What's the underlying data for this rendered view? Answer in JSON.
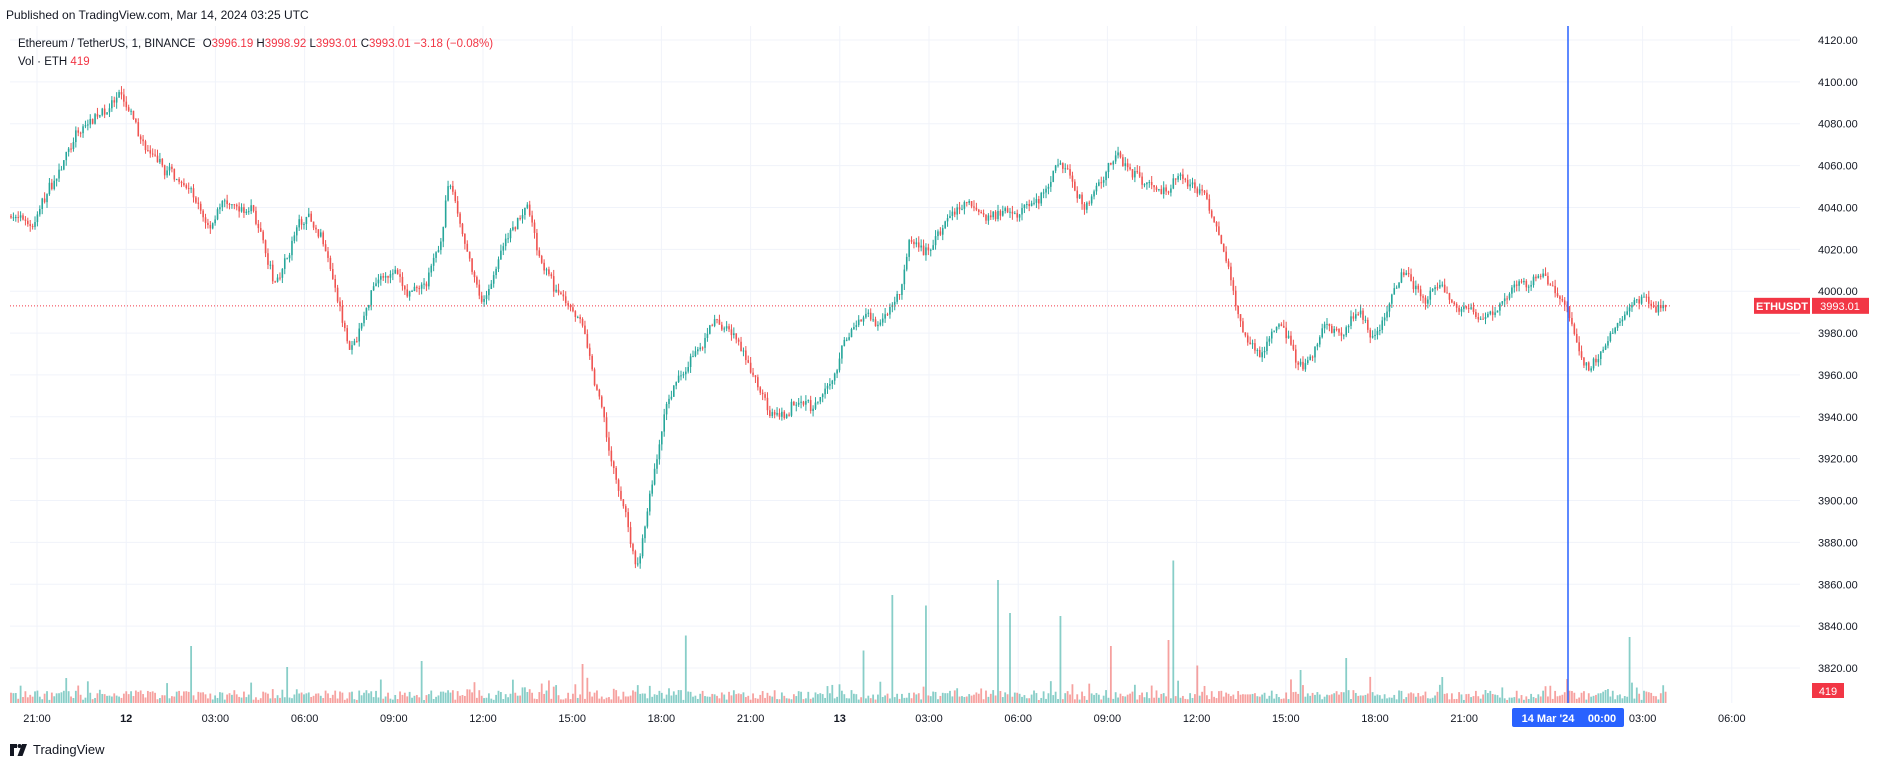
{
  "published": "Published on TradingView.com, Mar 14, 2024 03:25 UTC",
  "brand": "TradingView",
  "legend": {
    "symbol": "Ethereum / TetherUS, 1, BINANCE",
    "o_label": "O",
    "o_value": "3996.19",
    "h_label": "H",
    "h_value": "3998.92",
    "l_label": "L",
    "l_value": "3993.01",
    "c_label": "C",
    "c_value": "3993.01",
    "change": "−3.18 (−0.08%)",
    "vol_label": "Vol · ETH",
    "vol_value": "419"
  },
  "colors": {
    "up": "#26a69a",
    "down": "#ef5350",
    "crosshair": "#2962ff",
    "price_tag": "#f23645"
  },
  "chart_data": {
    "type": "candlestick",
    "symbol": "ETHUSDT",
    "interval": "1",
    "ylim": [
      3810,
      4125
    ],
    "y_ticks": [
      "4120.00",
      "4100.00",
      "4080.00",
      "4060.00",
      "4040.00",
      "4020.00",
      "4000.00",
      "3980.00",
      "3960.00",
      "3940.00",
      "3920.00",
      "3900.00",
      "3880.00",
      "3860.00",
      "3840.00",
      "3820.00"
    ],
    "x_ticks": [
      "21:00",
      "12",
      "03:00",
      "06:00",
      "09:00",
      "12:00",
      "15:00",
      "18:00",
      "21:00",
      "13",
      "03:00",
      "06:00",
      "09:00",
      "12:00",
      "15:00",
      "18:00",
      "21:00",
      "03:00",
      "06:00"
    ],
    "bold_x_ticks": [
      "12",
      "13"
    ],
    "last_price": "3993.01",
    "last_price_label": "ETHUSDT",
    "last_volume": "419",
    "crosshair_date": "14 Mar '24",
    "crosshair_time": "00:00",
    "price_path": [
      [
        0,
        4036
      ],
      [
        5,
        4033
      ],
      [
        10,
        4032
      ],
      [
        15,
        4045
      ],
      [
        20,
        4055
      ],
      [
        25,
        4065
      ],
      [
        30,
        4075
      ],
      [
        35,
        4082
      ],
      [
        40,
        4085
      ],
      [
        45,
        4088
      ],
      [
        50,
        4092
      ],
      [
        55,
        4082
      ],
      [
        60,
        4070
      ],
      [
        65,
        4062
      ],
      [
        70,
        4058
      ],
      [
        75,
        4055
      ],
      [
        80,
        4050
      ],
      [
        85,
        4040
      ],
      [
        90,
        4030
      ],
      [
        95,
        4042
      ],
      [
        100,
        4040
      ],
      [
        105,
        4038
      ],
      [
        110,
        4040
      ],
      [
        115,
        4020
      ],
      [
        120,
        4002
      ],
      [
        125,
        4015
      ],
      [
        130,
        4030
      ],
      [
        135,
        4035
      ],
      [
        140,
        4028
      ],
      [
        145,
        4015
      ],
      [
        150,
        3990
      ],
      [
        155,
        3970
      ],
      [
        160,
        3985
      ],
      [
        165,
        4005
      ],
      [
        170,
        4010
      ],
      [
        175,
        4008
      ],
      [
        180,
        3998
      ],
      [
        185,
        4000
      ],
      [
        190,
        4005
      ],
      [
        195,
        4022
      ],
      [
        200,
        4055
      ],
      [
        205,
        4030
      ],
      [
        210,
        4010
      ],
      [
        215,
        3990
      ],
      [
        220,
        4010
      ],
      [
        225,
        4025
      ],
      [
        230,
        4032
      ],
      [
        235,
        4045
      ],
      [
        240,
        4020
      ],
      [
        245,
        4005
      ],
      [
        250,
        3998
      ],
      [
        255,
        3995
      ],
      [
        260,
        3985
      ],
      [
        265,
        3960
      ],
      [
        270,
        3940
      ],
      [
        275,
        3910
      ],
      [
        280,
        3895
      ],
      [
        285,
        3865
      ],
      [
        290,
        3895
      ],
      [
        295,
        3925
      ],
      [
        300,
        3950
      ],
      [
        305,
        3960
      ],
      [
        310,
        3968
      ],
      [
        315,
        3975
      ],
      [
        320,
        3985
      ],
      [
        325,
        3982
      ],
      [
        330,
        3978
      ],
      [
        335,
        3965
      ],
      [
        340,
        3955
      ],
      [
        345,
        3945
      ],
      [
        350,
        3938
      ],
      [
        355,
        3945
      ],
      [
        360,
        3950
      ],
      [
        365,
        3945
      ],
      [
        370,
        3950
      ],
      [
        375,
        3960
      ],
      [
        380,
        3975
      ],
      [
        385,
        3985
      ],
      [
        390,
        3990
      ],
      [
        395,
        3985
      ],
      [
        400,
        3992
      ],
      [
        405,
        3998
      ],
      [
        410,
        4025
      ],
      [
        415,
        4018
      ],
      [
        420,
        4022
      ],
      [
        425,
        4030
      ],
      [
        430,
        4038
      ],
      [
        435,
        4042
      ],
      [
        440,
        4040
      ],
      [
        445,
        4035
      ],
      [
        450,
        4038
      ],
      [
        455,
        4040
      ],
      [
        460,
        4038
      ],
      [
        465,
        4042
      ],
      [
        470,
        4045
      ],
      [
        475,
        4055
      ],
      [
        480,
        4062
      ],
      [
        485,
        4048
      ],
      [
        490,
        4040
      ],
      [
        495,
        4050
      ],
      [
        500,
        4060
      ],
      [
        505,
        4065
      ],
      [
        510,
        4058
      ],
      [
        515,
        4055
      ],
      [
        520,
        4050
      ],
      [
        525,
        4045
      ],
      [
        530,
        4055
      ],
      [
        535,
        4052
      ],
      [
        540,
        4050
      ],
      [
        545,
        4045
      ],
      [
        550,
        4030
      ],
      [
        555,
        4010
      ],
      [
        560,
        3985
      ],
      [
        565,
        3975
      ],
      [
        570,
        3970
      ],
      [
        575,
        3980
      ],
      [
        580,
        3985
      ],
      [
        585,
        3970
      ],
      [
        590,
        3962
      ],
      [
        595,
        3975
      ],
      [
        600,
        3985
      ],
      [
        605,
        3978
      ],
      [
        610,
        3985
      ],
      [
        615,
        3990
      ],
      [
        620,
        3978
      ],
      [
        625,
        3985
      ],
      [
        630,
        3998
      ],
      [
        635,
        4008
      ],
      [
        640,
        4003
      ],
      [
        645,
        3995
      ],
      [
        650,
        4005
      ],
      [
        655,
        3998
      ],
      [
        660,
        3990
      ],
      [
        665,
        3993
      ],
      [
        670,
        3985
      ],
      [
        675,
        3990
      ],
      [
        680,
        3995
      ],
      [
        685,
        4000
      ],
      [
        690,
        4003
      ],
      [
        695,
        4008
      ],
      [
        700,
        4005
      ],
      [
        705,
        3998
      ],
      [
        710,
        3990
      ],
      [
        715,
        3970
      ],
      [
        720,
        3962
      ],
      [
        725,
        3970
      ],
      [
        730,
        3982
      ],
      [
        735,
        3990
      ],
      [
        740,
        3995
      ],
      [
        745,
        3998
      ],
      [
        750,
        3990
      ],
      [
        755,
        3993
      ]
    ],
    "volume_spikes": [
      [
        82,
        38
      ],
      [
        126,
        24
      ],
      [
        187,
        28
      ],
      [
        260,
        26
      ],
      [
        307,
        45
      ],
      [
        388,
        35
      ],
      [
        402,
        72
      ],
      [
        417,
        65
      ],
      [
        450,
        82
      ],
      [
        455,
        60
      ],
      [
        478,
        58
      ],
      [
        501,
        38
      ],
      [
        527,
        42
      ],
      [
        530,
        95
      ],
      [
        540,
        25
      ],
      [
        588,
        22
      ],
      [
        608,
        30
      ],
      [
        738,
        44
      ],
      [
        771,
        36
      ],
      [
        815,
        25
      ],
      [
        878,
        34
      ],
      [
        909,
        38
      ],
      [
        1020,
        40
      ],
      [
        1032,
        52
      ],
      [
        1048,
        42
      ],
      [
        1058,
        38
      ],
      [
        1217,
        24
      ],
      [
        1326,
        26
      ]
    ]
  }
}
